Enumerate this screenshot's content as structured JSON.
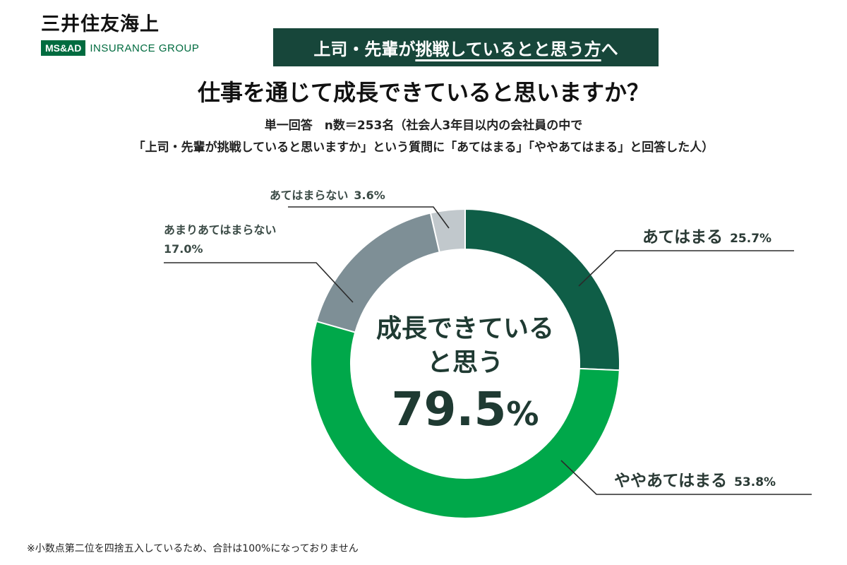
{
  "header": {
    "logo_jp": "三井住友海上",
    "logo_ms": "MS&AD",
    "logo_group": "INSURANCE GROUP",
    "banner_pre": "上司・先輩が",
    "banner_hl": "挑戦しているとと思う方",
    "banner_post": "へ"
  },
  "title": "仕事を通じて成長できていると思いますか？",
  "subtitle_line1": "単一回答　n数＝253名（社会人3年目以内の会社員の中で",
  "subtitle_line2": "「上司・先輩が挑戦していると思いますか」という質問に「あてはまる」「ややあてはまる」と回答した人）",
  "center": {
    "line1": "成長できている",
    "line2": "と思う",
    "value": "79.5",
    "unit": "%"
  },
  "footnote": "※小数点第二位を四捨五入しているため、合計は100%になっておりません",
  "colors": {
    "banner": "#17463a",
    "brand": "#006b3f",
    "text": "#2a3a35"
  },
  "chart_data": {
    "type": "pie",
    "style": "donut",
    "categories": [
      "あてはまる",
      "ややあてはまる",
      "あまりあてはまらない",
      "あてはまらない"
    ],
    "values": [
      25.7,
      53.8,
      17.0,
      3.6
    ],
    "value_labels": [
      "25.7%",
      "53.8%",
      "17.0%",
      "3.6%"
    ],
    "colors": [
      "#0f5e47",
      "#00a84a",
      "#7e8f96",
      "#c1c8cc"
    ]
  }
}
